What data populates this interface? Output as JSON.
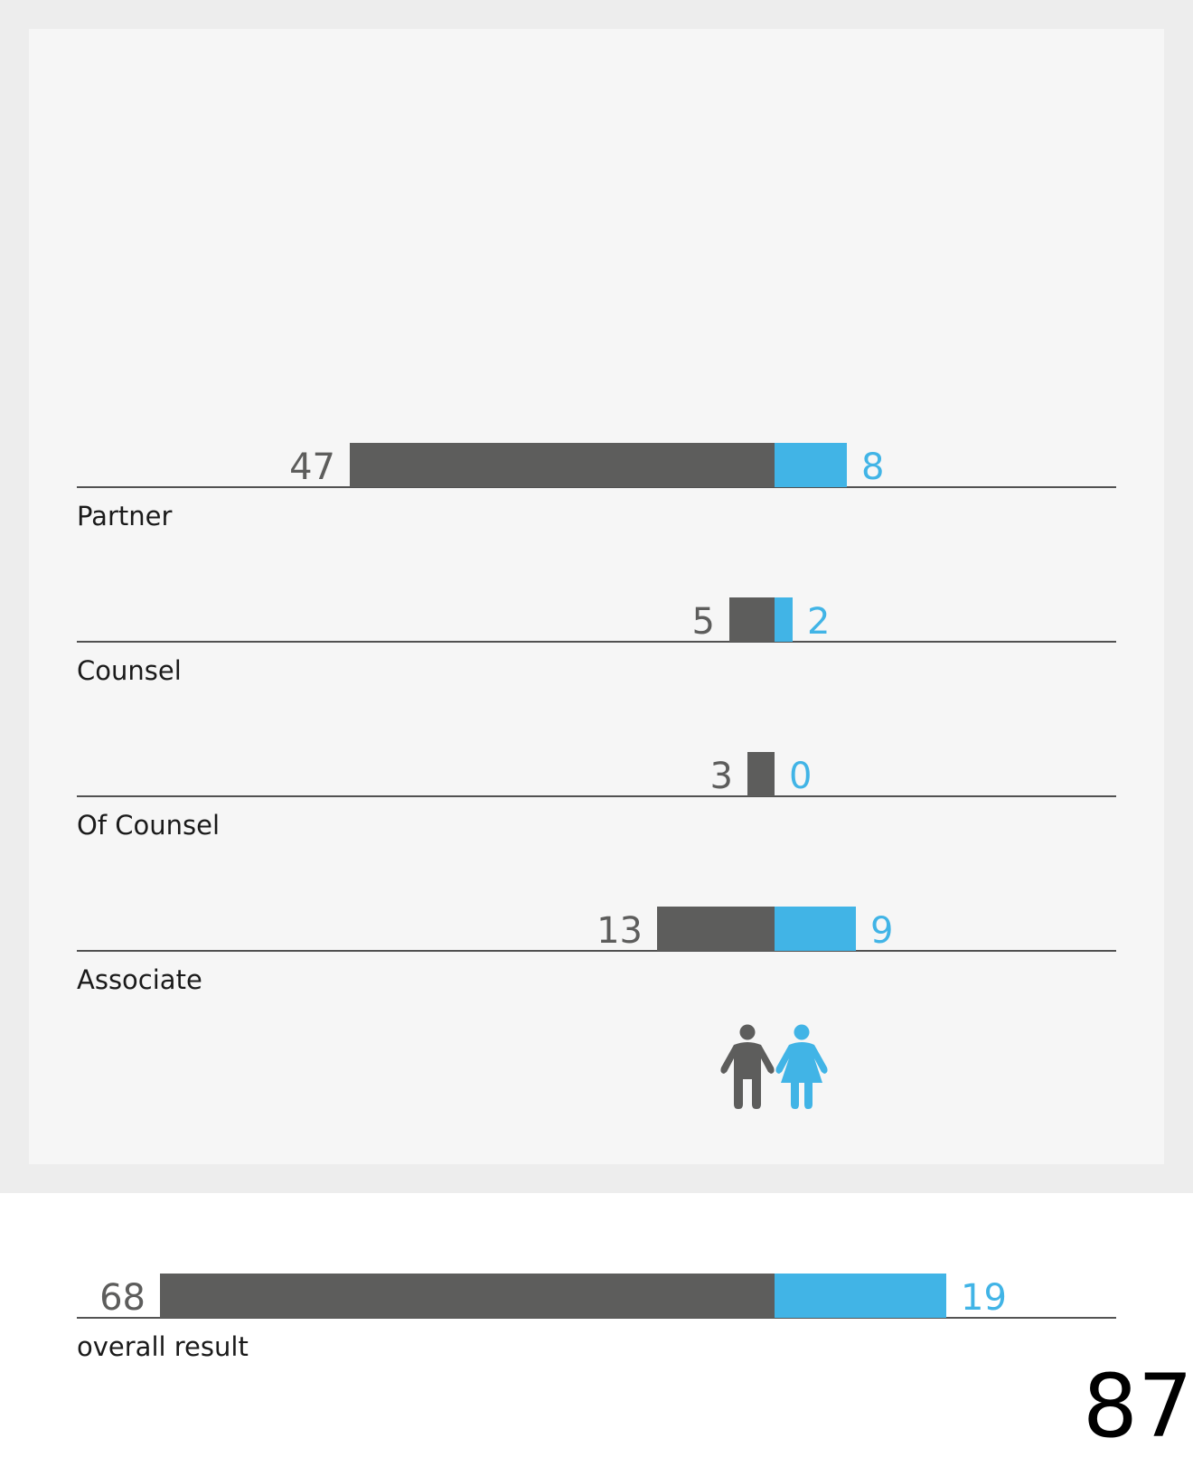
{
  "chart_data": {
    "type": "bar",
    "orientation": "diverging-horizontal",
    "categories": [
      "Partner",
      "Counsel",
      "Of Counsel",
      "Associate"
    ],
    "series": [
      {
        "values": [
          47,
          5,
          3,
          13
        ],
        "color": "#5d5d5c",
        "icon": "male-figure-icon"
      },
      {
        "values": [
          8,
          2,
          0,
          9
        ],
        "color": "#41b4e6",
        "icon": "female-figure-icon"
      }
    ],
    "overall": {
      "label": "overall result",
      "values": [
        68,
        19
      ]
    },
    "title": "",
    "xlabel": "",
    "ylabel": ""
  },
  "page": {
    "number": "87"
  },
  "colors": {
    "male": "#5d5d5c",
    "female": "#41b4e6",
    "frame": "#ededed",
    "panel": "#f6f6f6"
  }
}
